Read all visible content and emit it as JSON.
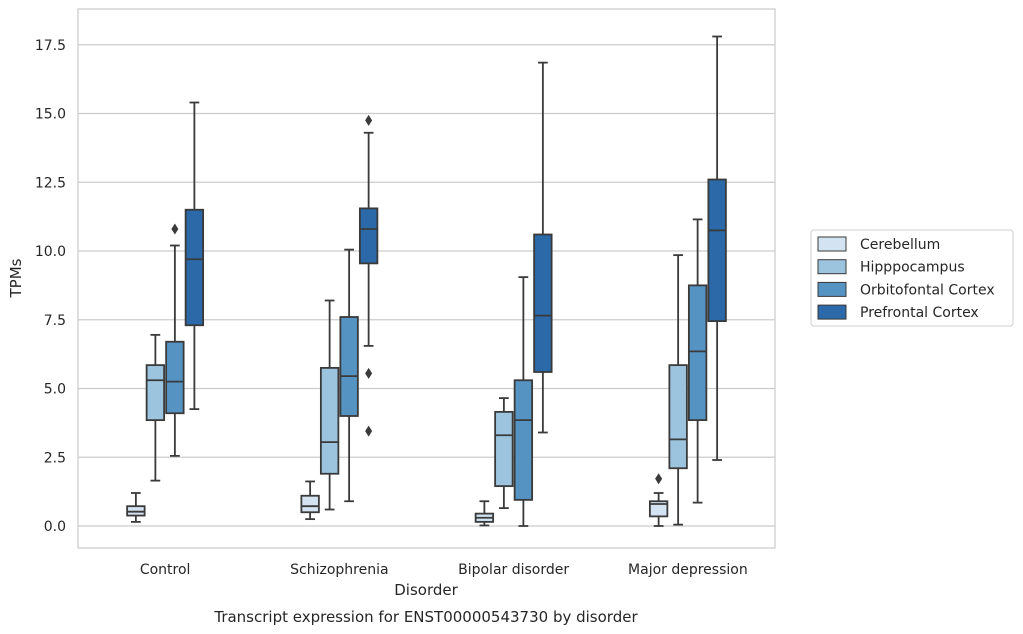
{
  "chart_data": {
    "type": "box",
    "xlabel": "Disorder",
    "ylabel": "TPMs",
    "caption": "Transcript expression for ENST00000543730 by disorder",
    "ylim": [
      -0.8,
      18.8
    ],
    "yticks": [
      "0.0",
      "2.5",
      "5.0",
      "7.5",
      "10.0",
      "12.5",
      "15.0",
      "17.5"
    ],
    "ytick_values": [
      0,
      2.5,
      5,
      7.5,
      10,
      12.5,
      15,
      17.5
    ],
    "grid": "horizontal",
    "legend_position": "right",
    "categories": [
      "Control",
      "Schizophrenia",
      "Bipolar disorder",
      "Major depression"
    ],
    "series": [
      {
        "name": "Cerebellum",
        "color": "#d3e3f2",
        "boxes": [
          {
            "min": 0.15,
            "q1": 0.38,
            "median": 0.52,
            "q3": 0.72,
            "max": 1.2,
            "outliers": []
          },
          {
            "min": 0.25,
            "q1": 0.5,
            "median": 0.72,
            "q3": 1.1,
            "max": 1.62,
            "outliers": []
          },
          {
            "min": 0.02,
            "q1": 0.15,
            "median": 0.3,
            "q3": 0.45,
            "max": 0.9,
            "outliers": []
          },
          {
            "min": 0.0,
            "q1": 0.35,
            "median": 0.8,
            "q3": 0.9,
            "max": 1.2,
            "outliers": [
              1.72
            ]
          }
        ]
      },
      {
        "name": "Hipppocampus",
        "color": "#9dc4df",
        "boxes": [
          {
            "min": 1.65,
            "q1": 3.85,
            "median": 5.3,
            "q3": 5.85,
            "max": 6.95,
            "outliers": []
          },
          {
            "min": 0.6,
            "q1": 1.9,
            "median": 3.05,
            "q3": 5.75,
            "max": 8.2,
            "outliers": []
          },
          {
            "min": 0.65,
            "q1": 1.45,
            "median": 3.3,
            "q3": 4.15,
            "max": 4.65,
            "outliers": []
          },
          {
            "min": 0.05,
            "q1": 2.1,
            "median": 3.15,
            "q3": 5.85,
            "max": 9.85,
            "outliers": []
          }
        ]
      },
      {
        "name": "Orbitofontal Cortex",
        "color": "#5593c3",
        "boxes": [
          {
            "min": 2.55,
            "q1": 4.1,
            "median": 5.25,
            "q3": 6.7,
            "max": 10.2,
            "outliers": [
              10.8
            ]
          },
          {
            "min": 0.9,
            "q1": 4.0,
            "median": 5.45,
            "q3": 7.6,
            "max": 10.05,
            "outliers": []
          },
          {
            "min": 0.0,
            "q1": 0.95,
            "median": 3.85,
            "q3": 5.3,
            "max": 9.05,
            "outliers": []
          },
          {
            "min": 0.85,
            "q1": 3.85,
            "median": 6.35,
            "q3": 8.75,
            "max": 11.15,
            "outliers": []
          }
        ]
      },
      {
        "name": "Prefrontal Cortex",
        "color": "#2b69a8",
        "boxes": [
          {
            "min": 4.25,
            "q1": 7.3,
            "median": 9.7,
            "q3": 11.5,
            "max": 15.4,
            "outliers": []
          },
          {
            "min": 6.55,
            "q1": 9.55,
            "median": 10.8,
            "q3": 11.55,
            "max": 14.3,
            "outliers": [
              14.75,
              5.55,
              3.45
            ]
          },
          {
            "min": 3.4,
            "q1": 5.6,
            "median": 7.65,
            "q3": 10.6,
            "max": 16.85,
            "outliers": []
          },
          {
            "min": 2.4,
            "q1": 7.45,
            "median": 10.75,
            "q3": 12.6,
            "max": 17.8,
            "outliers": []
          }
        ]
      }
    ]
  }
}
